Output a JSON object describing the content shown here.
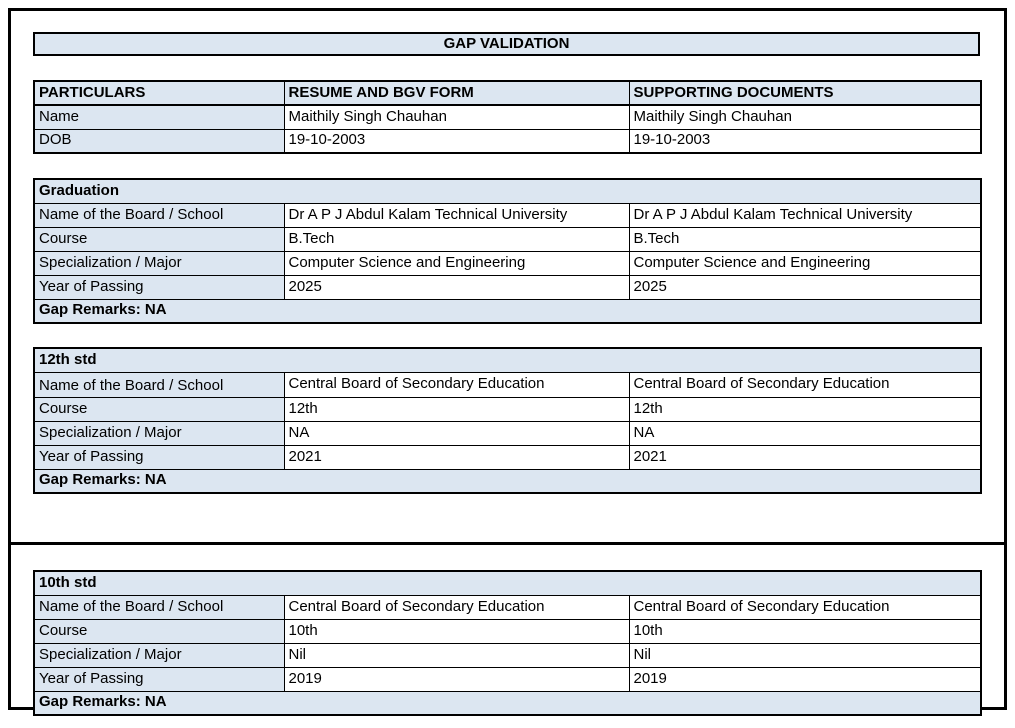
{
  "title": "GAP VALIDATION",
  "colors": {
    "header_fill": "#dce6f1",
    "border": "#000000",
    "text": "#000000"
  },
  "particulars": {
    "headers": [
      "PARTICULARS",
      "RESUME AND BGV FORM",
      "SUPPORTING DOCUMENTS"
    ],
    "rows": [
      {
        "label": "Name",
        "resume": "Maithily Singh Chauhan",
        "supporting": "Maithily Singh Chauhan"
      },
      {
        "label": "DOB",
        "resume": "19-10-2003",
        "supporting": "19-10-2003"
      }
    ]
  },
  "sections": [
    {
      "heading": "Graduation",
      "rows": [
        {
          "label": "Name of the Board / School",
          "resume": "Dr A P J Abdul Kalam Technical University",
          "supporting": "Dr A P J Abdul Kalam Technical University"
        },
        {
          "label": "Course",
          "resume": "B.Tech",
          "supporting": "B.Tech"
        },
        {
          "label": "Specialization / Major",
          "resume": "Computer Science and Engineering",
          "supporting": "Computer Science and Engineering"
        },
        {
          "label": "Year of Passing",
          "resume": "2025",
          "supporting": "2025"
        }
      ],
      "gap_remarks": "Gap Remarks: NA"
    },
    {
      "heading": "12th std",
      "rows": [
        {
          "label": "Name of the Board / School",
          "resume": "Central Board of Secondary Education",
          "supporting": "Central Board of Secondary Education"
        },
        {
          "label": "Course",
          "resume": "12th",
          "supporting": "12th"
        },
        {
          "label": "Specialization / Major",
          "resume": "NA",
          "supporting": "NA"
        },
        {
          "label": "Year of Passing",
          "resume": "2021",
          "supporting": "2021"
        }
      ],
      "gap_remarks": "Gap Remarks: NA"
    },
    {
      "heading": "10th std",
      "rows": [
        {
          "label": "Name of the Board / School",
          "resume": "Central Board of Secondary Education",
          "supporting": "Central Board of Secondary Education"
        },
        {
          "label": "Course",
          "resume": "10th",
          "supporting": "10th"
        },
        {
          "label": "Specialization / Major",
          "resume": "Nil",
          "supporting": "Nil"
        },
        {
          "label": "Year of Passing",
          "resume": "2019",
          "supporting": "2019"
        }
      ],
      "gap_remarks": "Gap Remarks: NA"
    }
  ]
}
